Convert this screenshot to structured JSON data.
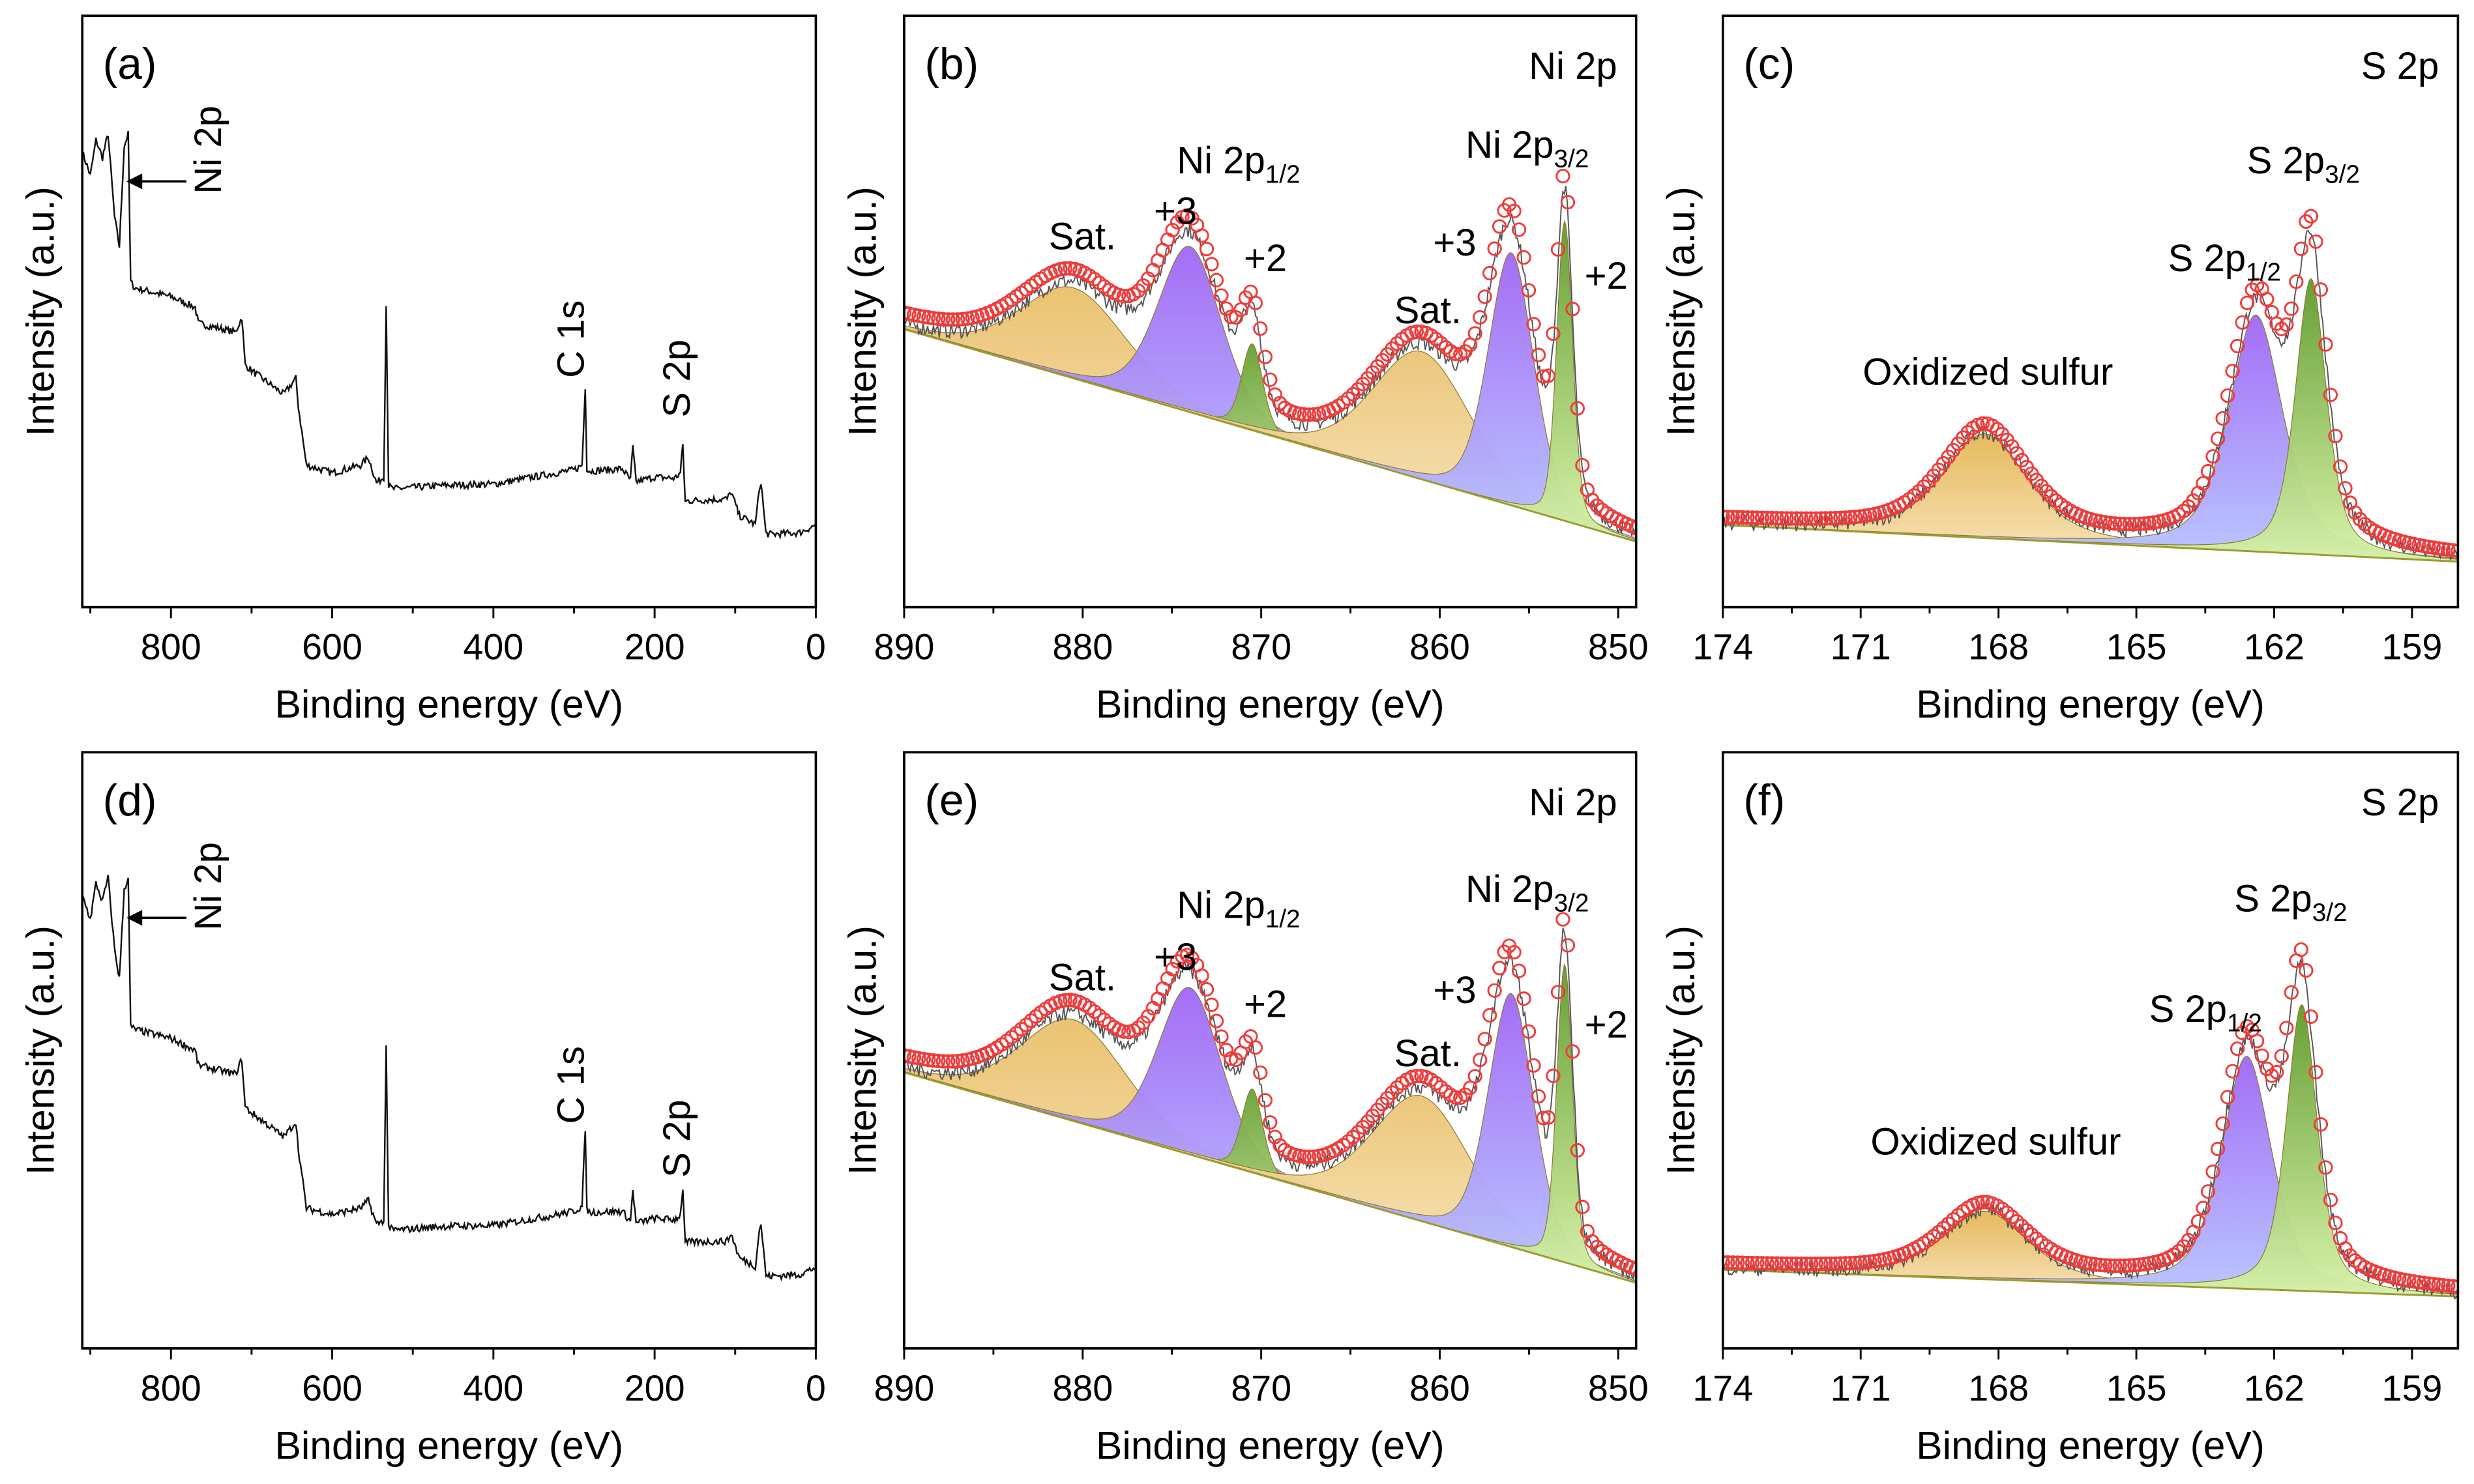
{
  "colors": {
    "observed": "#f03a3a",
    "raw": "#555555",
    "satellite": "#eac575",
    "ni3": "#a066f5",
    "ni3_low": "#b6c4ff",
    "ni2": "#5f9a2a",
    "ni2_low": "#d6f2a6",
    "oxidized": "#e8bd62",
    "background_line": "#9c9a30"
  },
  "chart_data": [
    {
      "panel": "(a)",
      "type": "line",
      "corner_title": "",
      "xlabel": "Binding energy (eV)",
      "ylabel": "Intensity (a.u.)",
      "xlim": [
        910,
        0
      ],
      "ylim": [
        0,
        100
      ],
      "xticks": [
        "800",
        "600",
        "400",
        "200",
        "0"
      ],
      "minor_step": 100,
      "annotations": [
        {
          "text": "Ni 2p",
          "sub": ""
        },
        {
          "text": "C 1s",
          "sub": ""
        },
        {
          "text": "S 2p",
          "sub": ""
        }
      ],
      "series": [
        {
          "x": [
            910,
            900,
            893,
            885,
            878,
            870,
            864,
            858,
            853,
            850,
            845,
            800,
            770,
            766,
            720,
            712,
            708,
            700,
            660,
            645,
            642,
            632,
            600,
            565,
            555,
            545,
            536,
            533,
            530,
            525,
            460,
            400,
            330,
            300,
            290,
            286,
            284,
            280,
            240,
            230,
            227,
            223,
            200,
            175,
            168,
            165,
            162,
            158,
            110,
            105,
            95,
            75,
            70,
            68,
            62,
            58,
            20,
            0
          ],
          "y": [
            77,
            73,
            79,
            76,
            80,
            66,
            61,
            78,
            80,
            55,
            54,
            52.5,
            50.7,
            48,
            46.5,
            49,
            41,
            40,
            36,
            38.7,
            34,
            24,
            22.7,
            24,
            25.3,
            21,
            22,
            51,
            20.5,
            20,
            20.6,
            20.8,
            22.5,
            23.2,
            24,
            37.3,
            23.5,
            23,
            23.4,
            21.5,
            27,
            21.2,
            22,
            21.8,
            22.7,
            27.5,
            17.8,
            18,
            18.3,
            19.5,
            15.5,
            14,
            20,
            21.3,
            12.5,
            12.3,
            12.6,
            13.9
          ]
        }
      ]
    },
    {
      "panel": "(b)",
      "type": "area",
      "corner_title": "Ni 2p",
      "xlabel": "Binding energy (eV)",
      "ylabel": "Intensity (a.u.)",
      "xlim": [
        890,
        849
      ],
      "ylim": [
        0,
        100
      ],
      "xticks": [
        "890",
        "880",
        "870",
        "860",
        "850"
      ],
      "minor_step": 5,
      "annotations": [
        {
          "text": "Sat.",
          "sub": ""
        },
        {
          "text": "+3",
          "sub": ""
        },
        {
          "text": "Ni 2p",
          "sub": "1/2"
        },
        {
          "text": "+2",
          "sub": ""
        },
        {
          "text": "+3",
          "sub": ""
        },
        {
          "text": "Sat.",
          "sub": ""
        },
        {
          "text": "Ni 2p",
          "sub": "3/2"
        },
        {
          "text": "+2",
          "sub": ""
        }
      ],
      "background": {
        "x": [
          890,
          849
        ],
        "y": [
          47,
          11.1
        ]
      },
      "components": [
        {
          "label": "Sat.",
          "center": 880.5,
          "height": 15.3,
          "fwhm": 7.0,
          "color": "satellite"
        },
        {
          "label": "+3",
          "center": 874.0,
          "height": 28.0,
          "fwhm": 4.2,
          "color": "ni3"
        },
        {
          "label": "+2",
          "center": 870.5,
          "height": 14.6,
          "fwhm": 1.4,
          "color": "ni2"
        },
        {
          "label": "Sat.",
          "center": 861.0,
          "height": 21.6,
          "fwhm": 6.5,
          "color": "satellite"
        },
        {
          "label": "+3",
          "center": 856.0,
          "height": 42.7,
          "fwhm": 3.0,
          "color": "ni3"
        },
        {
          "label": "+2",
          "center": 853.0,
          "height": 50.7,
          "fwhm": 1.05,
          "color": "ni2"
        }
      ]
    },
    {
      "panel": "(c)",
      "type": "area",
      "corner_title": "S 2p",
      "xlabel": "Binding energy (eV)",
      "ylabel": "Intensity (a.u.)",
      "xlim": [
        174,
        158
      ],
      "ylim": [
        0,
        100
      ],
      "xticks": [
        "174",
        "171",
        "168",
        "165",
        "162",
        "159"
      ],
      "minor_step": 1.5,
      "annotations": [
        {
          "text": "Oxidized  sulfur",
          "sub": ""
        },
        {
          "text": "S 2p",
          "sub": "1/2"
        },
        {
          "text": "S 2p",
          "sub": "3/2"
        }
      ],
      "background": {
        "x": [
          174,
          158
        ],
        "y": [
          13.9,
          7.7
        ]
      },
      "components": [
        {
          "label": "Oxidized sulfur",
          "center": 168.3,
          "height": 17.6,
          "fwhm": 2.2,
          "color": "oxidized"
        },
        {
          "label": "S 2p1/2",
          "center": 162.4,
          "height": 40.0,
          "fwhm": 1.4,
          "color": "ni3"
        },
        {
          "label": "S 2p3/2",
          "center": 161.2,
          "height": 46.6,
          "fwhm": 0.8,
          "color": "ni2"
        }
      ]
    },
    {
      "panel": "(d)",
      "type": "line",
      "corner_title": "",
      "xlabel": "Binding energy (eV)",
      "ylabel": "Intensity (a.u.)",
      "xlim": [
        910,
        0
      ],
      "ylim": [
        0,
        100
      ],
      "xticks": [
        "800",
        "600",
        "400",
        "200",
        "0"
      ],
      "minor_step": 100,
      "annotations": [
        {
          "text": "Ni 2p",
          "sub": ""
        },
        {
          "text": "C 1s",
          "sub": ""
        },
        {
          "text": "S 2p",
          "sub": ""
        }
      ],
      "series": [
        {
          "x": [
            910,
            900,
            893,
            885,
            878,
            870,
            864,
            858,
            853,
            850,
            845,
            800,
            770,
            766,
            720,
            712,
            708,
            700,
            660,
            645,
            642,
            632,
            600,
            565,
            555,
            545,
            536,
            533,
            530,
            525,
            460,
            400,
            330,
            300,
            290,
            286,
            284,
            280,
            240,
            230,
            227,
            223,
            200,
            175,
            168,
            165,
            162,
            158,
            110,
            105,
            95,
            75,
            70,
            68,
            62,
            58,
            20,
            0
          ],
          "y": [
            76,
            72,
            78,
            75,
            79,
            67,
            62,
            77,
            79,
            54,
            53.5,
            52,
            50,
            47.5,
            46,
            48.5,
            40.5,
            39.5,
            35.5,
            38,
            33.5,
            23.5,
            22.5,
            23.5,
            24.8,
            20.8,
            21.5,
            50.5,
            20.5,
            19.8,
            20.5,
            20.6,
            22.2,
            23,
            23.8,
            37,
            23.2,
            22.8,
            23,
            21.3,
            26.6,
            21,
            21.8,
            21.6,
            22.4,
            27,
            17.6,
            17.8,
            18,
            19.2,
            15.2,
            13.8,
            19.8,
            21,
            12.3,
            12.1,
            12.4,
            13.6
          ]
        }
      ]
    },
    {
      "panel": "(e)",
      "type": "area",
      "corner_title": "Ni 2p",
      "xlabel": "Binding energy (eV)",
      "ylabel": "Intensity (a.u.)",
      "xlim": [
        890,
        849
      ],
      "ylim": [
        0,
        100
      ],
      "xticks": [
        "890",
        "880",
        "870",
        "860",
        "850"
      ],
      "minor_step": 5,
      "annotations": [
        {
          "text": "Sat.",
          "sub": ""
        },
        {
          "text": "+3",
          "sub": ""
        },
        {
          "text": "Ni 2p",
          "sub": "1/2"
        },
        {
          "text": "+2",
          "sub": ""
        },
        {
          "text": "+3",
          "sub": ""
        },
        {
          "text": "Sat.",
          "sub": ""
        },
        {
          "text": "Ni 2p",
          "sub": "3/2"
        },
        {
          "text": "+2",
          "sub": ""
        }
      ],
      "background": {
        "x": [
          890,
          849
        ],
        "y": [
          46.3,
          11
        ]
      },
      "components": [
        {
          "label": "Sat.",
          "center": 880.5,
          "height": 17.0,
          "fwhm": 7.0,
          "color": "satellite"
        },
        {
          "label": "+3",
          "center": 874.0,
          "height": 28.0,
          "fwhm": 4.2,
          "color": "ni3"
        },
        {
          "label": "+2",
          "center": 870.5,
          "height": 14.0,
          "fwhm": 1.4,
          "color": "ni2"
        },
        {
          "label": "Sat.",
          "center": 861.0,
          "height": 21.0,
          "fwhm": 6.5,
          "color": "satellite"
        },
        {
          "label": "+3",
          "center": 856.0,
          "height": 42.5,
          "fwhm": 3.0,
          "color": "ni3"
        },
        {
          "label": "+2",
          "center": 853.0,
          "height": 50.0,
          "fwhm": 1.05,
          "color": "ni2"
        }
      ]
    },
    {
      "panel": "(f)",
      "type": "area",
      "corner_title": "S 2p",
      "xlabel": "Binding energy (eV)",
      "ylabel": "Intensity (a.u.)",
      "xlim": [
        174,
        158
      ],
      "ylim": [
        0,
        100
      ],
      "xticks": [
        "174",
        "171",
        "168",
        "165",
        "162",
        "159"
      ],
      "minor_step": 1.5,
      "annotations": [
        {
          "text": "Oxidized  sulfur",
          "sub": ""
        },
        {
          "text": "S 2p",
          "sub": "1/2"
        },
        {
          "text": "S 2p",
          "sub": "3/2"
        }
      ],
      "background": {
        "x": [
          174,
          158
        ],
        "y": [
          13.2,
          8.7
        ]
      },
      "components": [
        {
          "label": "Oxidized sulfur",
          "center": 168.3,
          "height": 11.4,
          "fwhm": 2.2,
          "color": "oxidized"
        },
        {
          "label": "S 2p1/2",
          "center": 162.6,
          "height": 39.0,
          "fwhm": 1.3,
          "color": "ni3"
        },
        {
          "label": "S 2p3/2",
          "center": 161.4,
          "height": 48.0,
          "fwhm": 0.8,
          "color": "ni2"
        }
      ]
    }
  ]
}
